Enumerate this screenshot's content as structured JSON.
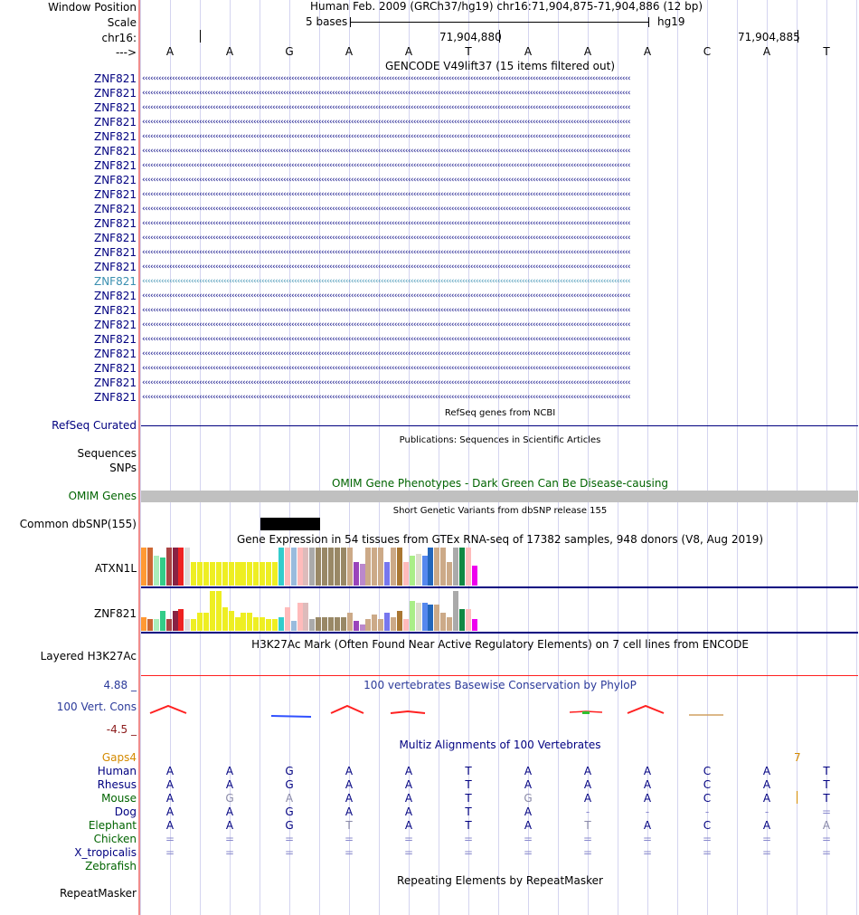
{
  "header": {
    "window_position_label": "Window Position",
    "scale_label": "Scale",
    "chr_label": "chr16:",
    "strand_label": "--->",
    "assembly_text": "Human Feb. 2009 (GRCh37/hg19)   chr16:71,904,875-71,904,886 (12 bp)",
    "scale_text": "5 bases",
    "db_text": "hg19",
    "pos_left": "71,904,880",
    "pos_right": "71,904,885",
    "bases": [
      "A",
      "A",
      "G",
      "A",
      "A",
      "T",
      "A",
      "A",
      "A",
      "C",
      "A",
      "T"
    ]
  },
  "gencode": {
    "title": "GENCODE V49lift37 (15 items filtered out)",
    "rows": [
      "ZNF821",
      "ZNF821",
      "ZNF821",
      "ZNF821",
      "ZNF821",
      "ZNF821",
      "ZNF821",
      "ZNF821",
      "ZNF821",
      "ZNF821",
      "ZNF821",
      "ZNF821",
      "ZNF821",
      "ZNF821",
      "ZNF821",
      "ZNF821",
      "ZNF821",
      "ZNF821",
      "ZNF821",
      "ZNF821",
      "ZNF821",
      "ZNF821",
      "ZNF821"
    ],
    "highlight_index": 14
  },
  "refseq": {
    "label": "RefSeq Curated",
    "title": "RefSeq genes from NCBI"
  },
  "pubs": {
    "label1": "Sequences",
    "label2": "SNPs",
    "title": "Publications: Sequences in Scientific Articles"
  },
  "omim": {
    "label": "OMIM Genes",
    "title": "OMIM Gene Phenotypes - Dark Green Can Be Disease-causing"
  },
  "dbsnp": {
    "label": "Common dbSNP(155)",
    "title": "Short Genetic Variants from dbSNP release 155"
  },
  "gtex": {
    "title": "Gene Expression in 54 tissues from GTEx RNA-seq of 17382 samples, 948 donors (V8, Aug 2019)",
    "gene1": "ATXN1L",
    "gene2": "ZNF821",
    "colors": [
      "#ff9933",
      "#cc6633",
      "#aaeebb",
      "#33cc88",
      "#aa4444",
      "#882244",
      "#ee2222",
      "#dddddd",
      "#eeee22",
      "#eeee22",
      "#eeee22",
      "#eeee22",
      "#eeee22",
      "#eeee22",
      "#eeee22",
      "#eeee22",
      "#eeee22",
      "#eeee22",
      "#eeee22",
      "#eeee22",
      "#eeee22",
      "#eeee22",
      "#33cccc",
      "#ffbbbb",
      "#99bbdd",
      "#ffbbbb",
      "#ddbbbb",
      "#aaaaaa",
      "#998866",
      "#998866",
      "#998866",
      "#998866",
      "#998866",
      "#ccaa88",
      "#9944bb",
      "#bb88cc",
      "#ccaa88",
      "#ccaa88",
      "#ccaa88",
      "#7777ee",
      "#ccaa88",
      "#aa7733",
      "#ffbbbb",
      "#aaee88",
      "#ddddcc",
      "#5588ee",
      "#2266bb",
      "#ccaa88",
      "#ccaa88",
      "#ccaa88",
      "#aaaaaa",
      "#118844",
      "#ffbbbb",
      "#ee00ee"
    ],
    "values1": [
      0.95,
      0.95,
      0.75,
      0.7,
      0.95,
      0.95,
      0.95,
      0.95,
      0.6,
      0.6,
      0.6,
      0.6,
      0.6,
      0.6,
      0.6,
      0.6,
      0.6,
      0.6,
      0.6,
      0.6,
      0.6,
      0.6,
      0.95,
      0.95,
      0.95,
      0.95,
      0.95,
      0.95,
      0.95,
      0.95,
      0.95,
      0.95,
      0.95,
      0.95,
      0.6,
      0.55,
      0.95,
      0.95,
      0.95,
      0.6,
      0.95,
      0.95,
      0.6,
      0.75,
      0.8,
      0.75,
      0.95,
      0.95,
      0.95,
      0.6,
      0.95,
      0.95,
      0.95,
      0.5
    ],
    "values2": [
      0.35,
      0.3,
      0.3,
      0.5,
      0.3,
      0.5,
      0.55,
      0.3,
      0.3,
      0.45,
      0.45,
      1.0,
      1.0,
      0.6,
      0.5,
      0.35,
      0.45,
      0.45,
      0.35,
      0.35,
      0.3,
      0.3,
      0.35,
      0.6,
      0.25,
      0.7,
      0.7,
      0.3,
      0.35,
      0.35,
      0.35,
      0.35,
      0.35,
      0.45,
      0.25,
      0.15,
      0.3,
      0.4,
      0.3,
      0.45,
      0.35,
      0.5,
      0.3,
      0.75,
      0.7,
      0.7,
      0.65,
      0.65,
      0.45,
      0.35,
      1.0,
      0.55,
      0.55,
      0.3
    ]
  },
  "h3k27": {
    "label": "Layered H3K27Ac",
    "title": "H3K27Ac Mark (Often Found Near Active Regulatory Elements) on 7 cell lines from ENCODE"
  },
  "cons": {
    "title": "100 vertebrates Basewise Conservation by PhyloP",
    "label": "100 Vert. Cons",
    "max": "4.88 _",
    "min": "-4.5 _"
  },
  "multiz": {
    "title": "Multiz Alignments of 100 Vertebrates",
    "gaps_label": "Gaps4",
    "gaps_value": "7",
    "species": [
      {
        "name": "Human",
        "cls": "navy",
        "bases": [
          "A",
          "A",
          "G",
          "A",
          "A",
          "T",
          "A",
          "A",
          "A",
          "C",
          "A",
          "T"
        ]
      },
      {
        "name": "Rhesus",
        "cls": "navy",
        "bases": [
          "A",
          "A",
          "G",
          "A",
          "A",
          "T",
          "A",
          "A",
          "A",
          "C",
          "A",
          "T"
        ]
      },
      {
        "name": "Mouse",
        "cls": "dgreen",
        "bases": [
          "A",
          "G",
          "A",
          "A",
          "A",
          "T",
          "G",
          "A",
          "A",
          "C",
          "A",
          "T"
        ]
      },
      {
        "name": "Dog",
        "cls": "navy",
        "bases": [
          "A",
          "A",
          "G",
          "A",
          "A",
          "T",
          "A",
          "-",
          "-",
          "-",
          "-",
          "="
        ]
      },
      {
        "name": "Elephant",
        "cls": "dgreen",
        "bases": [
          "A",
          "A",
          "G",
          "T",
          "A",
          "T",
          "A",
          "T",
          "A",
          "C",
          "A",
          "A"
        ]
      },
      {
        "name": "Chicken",
        "cls": "dgreen",
        "bases": [
          "=",
          "=",
          "=",
          "=",
          "=",
          "=",
          "=",
          "=",
          "=",
          "=",
          "=",
          "="
        ]
      },
      {
        "name": "X_tropicalis",
        "cls": "navy",
        "bases": [
          "=",
          "=",
          "=",
          "=",
          "=",
          "=",
          "=",
          "=",
          "=",
          "=",
          "=",
          "="
        ]
      },
      {
        "name": "Zebrafish",
        "cls": "dgreen",
        "bases": []
      }
    ]
  },
  "repeat": {
    "label": "RepeatMasker",
    "title": "Repeating Elements by RepeatMasker"
  },
  "colors": {
    "navy": "#000080",
    "omim_bar": "#c0c0c0",
    "cons_red": "#ff2020",
    "cons_blue": "#3050ff"
  }
}
